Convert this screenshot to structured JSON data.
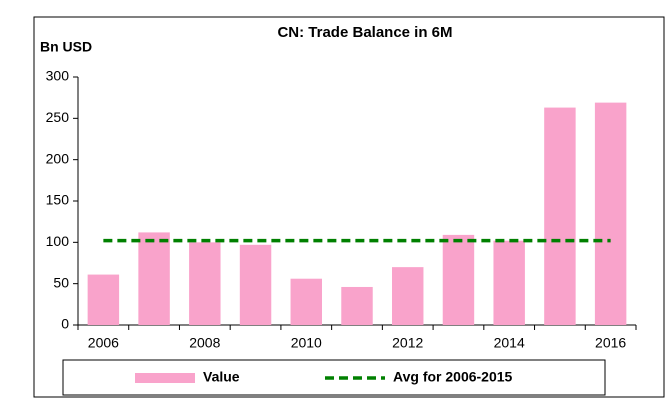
{
  "chart_data": {
    "type": "bar",
    "title": "CN: Trade Balance in 6M",
    "y_label": "Bn USD",
    "categories": [
      "2006",
      null,
      "2008",
      null,
      "2010",
      null,
      "2012",
      null,
      "2014",
      null,
      "2016"
    ],
    "series": [
      {
        "name": "Value",
        "color": "#f9a3cb",
        "type": "bar",
        "values": [
          61,
          112,
          100,
          97,
          56,
          46,
          70,
          109,
          102,
          263,
          269
        ]
      },
      {
        "name": "Avg for 2006-2015",
        "color": "#008000",
        "type": "line",
        "values": [
          102,
          102,
          102,
          102,
          102,
          102,
          102,
          102,
          102,
          102,
          102
        ]
      }
    ],
    "ylim": [
      0,
      300
    ],
    "yticks": [
      0,
      50,
      100,
      150,
      200,
      250,
      300
    ],
    "grid": false,
    "legend": "bottom"
  }
}
